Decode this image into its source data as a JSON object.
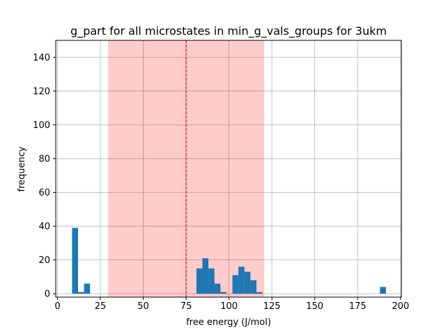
{
  "chart_data": {
    "type": "bar",
    "title": "g_part for all microstates in min_g_vals_groups for 3ukm",
    "xlabel": "free energy (J/mol)",
    "ylabel": "frequency",
    "xlim": [
      -1,
      200.5
    ],
    "ylim": [
      -2,
      150
    ],
    "xticks": [
      0,
      25,
      50,
      75,
      100,
      125,
      150,
      175,
      200
    ],
    "yticks": [
      0,
      20,
      40,
      60,
      80,
      100,
      120,
      140
    ],
    "grid": true,
    "bar_color": "#1f77b4",
    "highlight_color": "#ff0000",
    "highlight_opacity": 0.2,
    "highlight_range": [
      29.5,
      120.5
    ],
    "vline": {
      "x": 75,
      "color": "#ff0000",
      "style": "dashed"
    },
    "bin_width": 3.5,
    "bins": [
      {
        "x": 8.5,
        "height": 39
      },
      {
        "x": 12.0,
        "height": 1
      },
      {
        "x": 15.5,
        "height": 6
      },
      {
        "x": 81.0,
        "height": 15
      },
      {
        "x": 84.5,
        "height": 21
      },
      {
        "x": 88.0,
        "height": 15
      },
      {
        "x": 91.5,
        "height": 6
      },
      {
        "x": 95.0,
        "height": 1
      },
      {
        "x": 102.0,
        "height": 11
      },
      {
        "x": 105.5,
        "height": 16
      },
      {
        "x": 109.0,
        "height": 13
      },
      {
        "x": 112.5,
        "height": 8
      },
      {
        "x": 116.0,
        "height": 1
      },
      {
        "x": 188.0,
        "height": 4
      }
    ]
  }
}
